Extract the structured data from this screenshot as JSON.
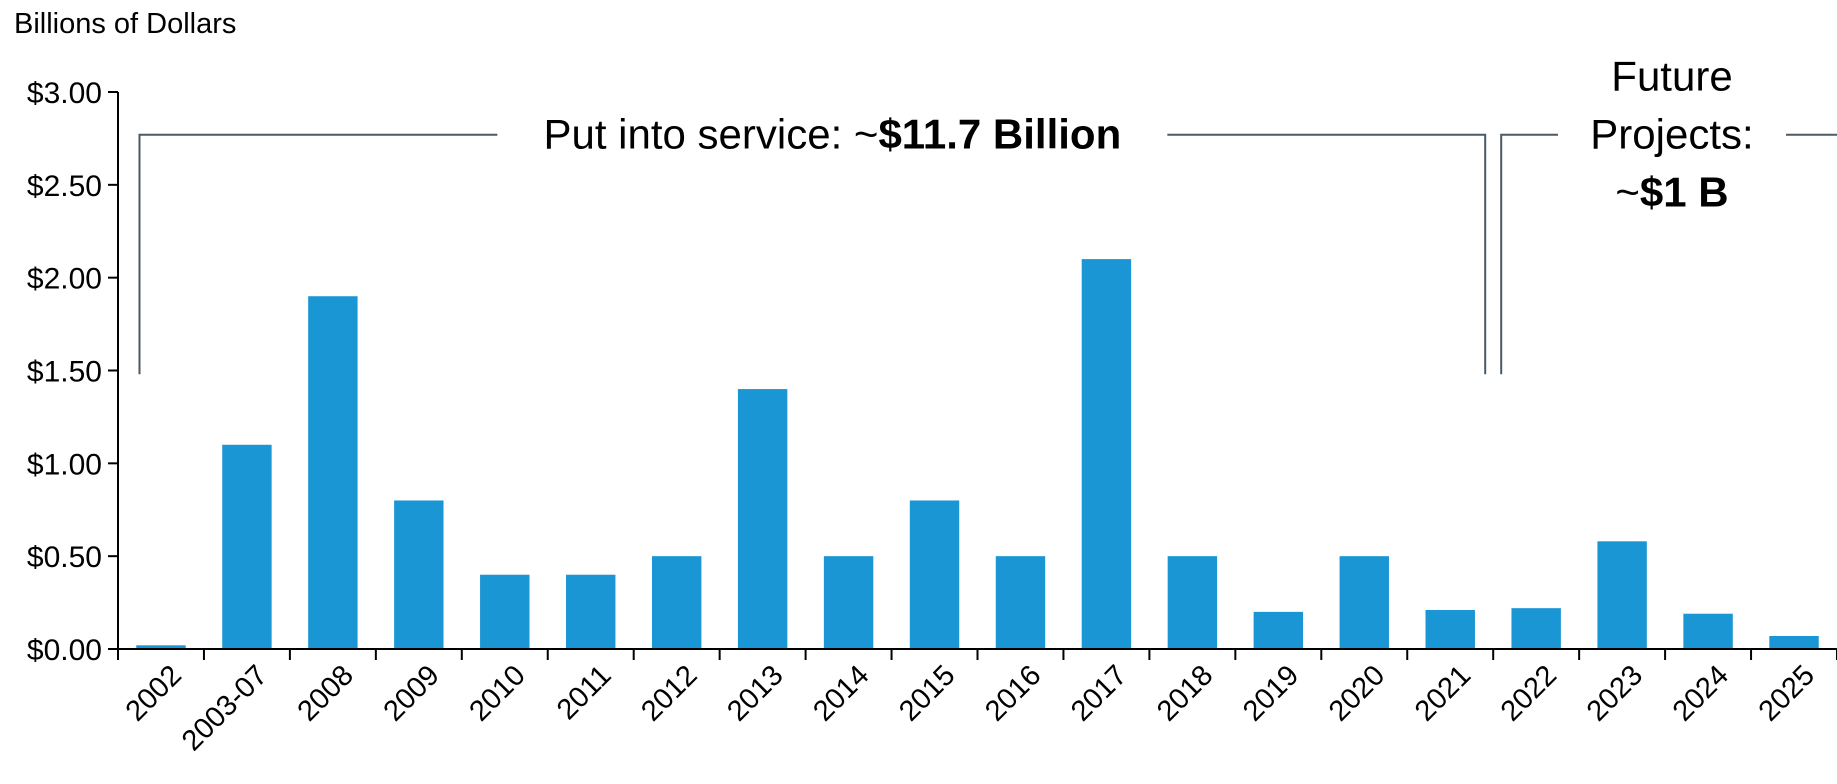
{
  "chart_data": {
    "type": "bar",
    "ylabel": "Billions of Dollars",
    "xlabel": "",
    "title": "",
    "ylim": [
      0,
      3
    ],
    "yticks": [
      0,
      0.5,
      1,
      1.5,
      2,
      2.5,
      3
    ],
    "ytick_labels": [
      "$0.00",
      "$0.50",
      "$1.00",
      "$1.50",
      "$2.00",
      "$2.50",
      "$3.00"
    ],
    "categories": [
      "2002",
      "2003-07",
      "2008",
      "2009",
      "2010",
      "2011",
      "2012",
      "2013",
      "2014",
      "2015",
      "2016",
      "2017",
      "2018",
      "2019",
      "2020",
      "2021",
      "2022",
      "2023",
      "2024",
      "2025"
    ],
    "values": [
      0.02,
      1.1,
      1.9,
      0.8,
      0.4,
      0.4,
      0.5,
      1.4,
      0.5,
      0.8,
      0.5,
      2.1,
      0.5,
      0.2,
      0.5,
      0.21,
      0.22,
      0.58,
      0.19,
      0.07
    ],
    "bar_color": "#1b96d4",
    "grid": false,
    "annotations": {
      "service": {
        "prefix": "Put into service: ~",
        "bold": "$11.7 Billion",
        "spans": [
          "2002",
          "2021"
        ]
      },
      "future": {
        "line1": "Future",
        "line2": "Projects:",
        "prefix": "~",
        "bold": "$1 B",
        "spans": [
          "2022",
          "2025"
        ]
      }
    }
  }
}
